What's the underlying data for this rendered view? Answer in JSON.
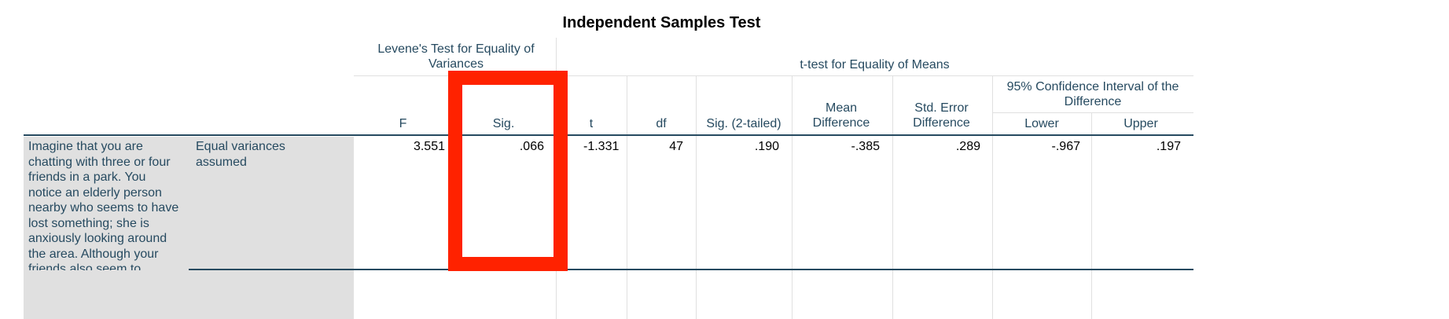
{
  "table": {
    "title": "Independent Samples Test",
    "group_headers": {
      "levene": "Levene's Test for Equality of Variances",
      "ttest": "t-test for Equality of Means",
      "ci": "95% Confidence Interval of the Difference"
    },
    "columns": {
      "f": "F",
      "sig": "Sig.",
      "t": "t",
      "df": "df",
      "sig2": "Sig. (2-tailed)",
      "mean_diff": "Mean Difference",
      "se_diff": "Std. Error Difference",
      "lower": "Lower",
      "upper": "Upper"
    },
    "row": {
      "variable": "Imagine that you are chatting with three or four friends in a park. You notice an elderly person nearby who seems to have lost something; she is anxiously looking around the area. Although your friends also seem to",
      "assumption": "Equal variances assumed",
      "f": "3.551",
      "sig": ".066",
      "t": "-1.331",
      "df": "47",
      "sig2": ".190",
      "mean_diff": "-.385",
      "se_diff": ".289",
      "lower": "-.967",
      "upper": ".197"
    }
  },
  "annotation": {
    "highlight_color": "#ff2200"
  }
}
